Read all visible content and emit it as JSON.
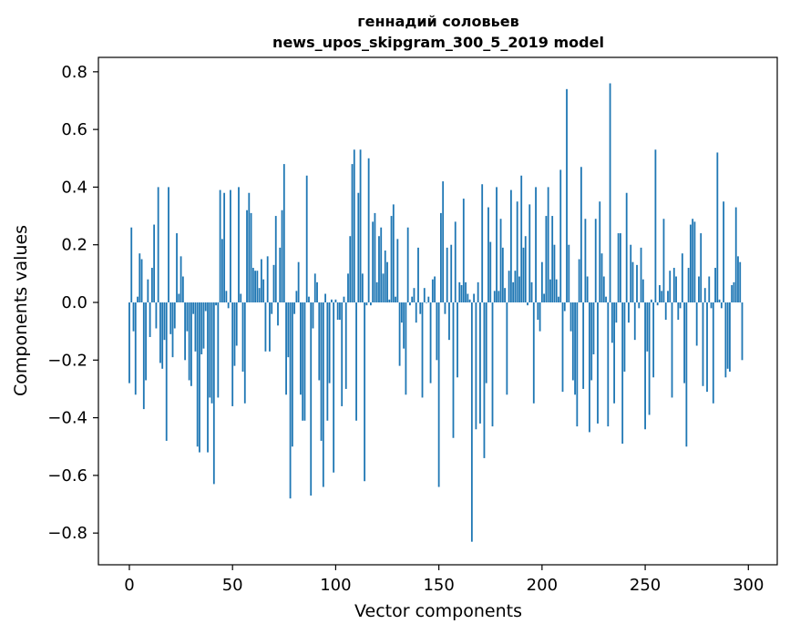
{
  "chart_data": {
    "type": "bar",
    "title_lines": [
      "геннадий соловьев",
      "news_upos_skipgram_300_5_2019 model"
    ],
    "xlabel": "Vector components",
    "ylabel": "Components values",
    "xlim": [
      -15,
      314
    ],
    "ylim": [
      -0.91,
      0.85
    ],
    "xticks": [
      0,
      50,
      100,
      150,
      200,
      250,
      300
    ],
    "yticks": [
      -0.8,
      -0.6,
      -0.4,
      -0.2,
      0.0,
      0.2,
      0.4,
      0.6,
      0.8
    ],
    "ytick_labels": [
      "−0.8",
      "−0.6",
      "−0.4",
      "−0.2",
      "0.0",
      "0.2",
      "0.4",
      "0.6",
      "0.8"
    ],
    "xtick_labels": [
      "0",
      "50",
      "100",
      "150",
      "200",
      "250",
      "300"
    ],
    "bar_color": "#1f77b4",
    "values": [
      -0.28,
      0.26,
      -0.1,
      -0.32,
      0.02,
      0.17,
      0.15,
      -0.37,
      -0.27,
      0.08,
      -0.12,
      0.12,
      0.27,
      -0.09,
      0.4,
      -0.21,
      -0.23,
      -0.13,
      -0.48,
      0.4,
      -0.11,
      -0.19,
      -0.09,
      0.24,
      0.03,
      0.16,
      0.09,
      -0.2,
      -0.1,
      -0.27,
      -0.29,
      -0.04,
      -0.17,
      -0.5,
      -0.52,
      -0.18,
      -0.16,
      -0.03,
      -0.52,
      -0.33,
      -0.35,
      -0.63,
      -0.01,
      -0.33,
      0.39,
      0.22,
      0.38,
      0.04,
      -0.02,
      0.39,
      -0.36,
      -0.22,
      -0.15,
      0.4,
      0.03,
      -0.24,
      -0.35,
      0.32,
      0.38,
      0.31,
      0.12,
      0.11,
      0.11,
      0.05,
      0.15,
      0.08,
      -0.17,
      0.16,
      -0.17,
      -0.04,
      0.13,
      0.3,
      -0.08,
      0.19,
      0.32,
      0.48,
      -0.32,
      -0.19,
      -0.68,
      -0.5,
      -0.04,
      0.04,
      0.14,
      -0.32,
      -0.41,
      -0.41,
      0.44,
      0.02,
      -0.67,
      -0.09,
      0.1,
      0.07,
      -0.27,
      -0.48,
      -0.64,
      0.03,
      -0.41,
      -0.28,
      0.01,
      -0.59,
      0.01,
      -0.06,
      -0.06,
      -0.36,
      0.02,
      -0.3,
      0.1,
      0.23,
      0.48,
      0.53,
      -0.41,
      0.38,
      0.53,
      0.1,
      -0.62,
      -0.01,
      0.5,
      -0.01,
      0.28,
      0.31,
      0.07,
      0.23,
      0.26,
      0.1,
      0.18,
      0.14,
      0.01,
      0.3,
      0.34,
      0.02,
      0.22,
      -0.22,
      -0.07,
      -0.16,
      -0.32,
      0.26,
      -0.01,
      0.02,
      0.05,
      -0.07,
      0.19,
      -0.04,
      -0.33,
      0.05,
      0.0,
      0.02,
      -0.28,
      0.08,
      0.09,
      -0.2,
      -0.64,
      0.31,
      0.42,
      -0.04,
      0.19,
      -0.13,
      0.2,
      -0.47,
      0.28,
      -0.26,
      0.07,
      0.06,
      0.36,
      0.07,
      0.03,
      0.01,
      -0.83,
      0.03,
      -0.44,
      0.07,
      -0.42,
      0.41,
      -0.54,
      -0.28,
      0.33,
      0.21,
      -0.43,
      0.04,
      0.4,
      0.04,
      0.29,
      0.19,
      0.05,
      -0.32,
      0.11,
      0.39,
      0.07,
      0.11,
      0.35,
      0.09,
      0.44,
      0.19,
      0.23,
      -0.01,
      0.34,
      0.07,
      -0.35,
      0.4,
      -0.06,
      -0.1,
      0.14,
      0.03,
      0.3,
      0.4,
      0.08,
      0.3,
      0.2,
      0.08,
      0.02,
      0.46,
      -0.31,
      -0.03,
      0.74,
      0.2,
      -0.1,
      -0.27,
      -0.32,
      -0.43,
      0.15,
      0.47,
      -0.3,
      0.29,
      0.09,
      -0.45,
      -0.27,
      -0.18,
      0.29,
      -0.42,
      0.35,
      0.17,
      0.09,
      0.02,
      -0.43,
      0.76,
      -0.14,
      -0.35,
      -0.07,
      0.24,
      0.24,
      -0.49,
      -0.24,
      0.38,
      -0.07,
      0.2,
      0.14,
      -0.13,
      0.13,
      -0.02,
      0.19,
      0.08,
      -0.44,
      -0.17,
      -0.39,
      0.01,
      -0.26,
      0.53,
      -0.01,
      0.06,
      0.04,
      0.29,
      -0.06,
      0.04,
      0.11,
      -0.33,
      0.12,
      0.09,
      -0.06,
      -0.02,
      0.17,
      -0.28,
      -0.5,
      0.12,
      0.27,
      0.29,
      0.28,
      -0.15,
      0.09,
      0.24,
      -0.29,
      0.05,
      -0.31,
      0.09,
      -0.02,
      -0.35,
      0.12,
      0.52,
      0.01,
      -0.02,
      0.35,
      -0.26,
      -0.23,
      -0.24,
      0.06,
      0.07,
      0.33,
      0.16,
      0.14,
      -0.2
    ]
  }
}
